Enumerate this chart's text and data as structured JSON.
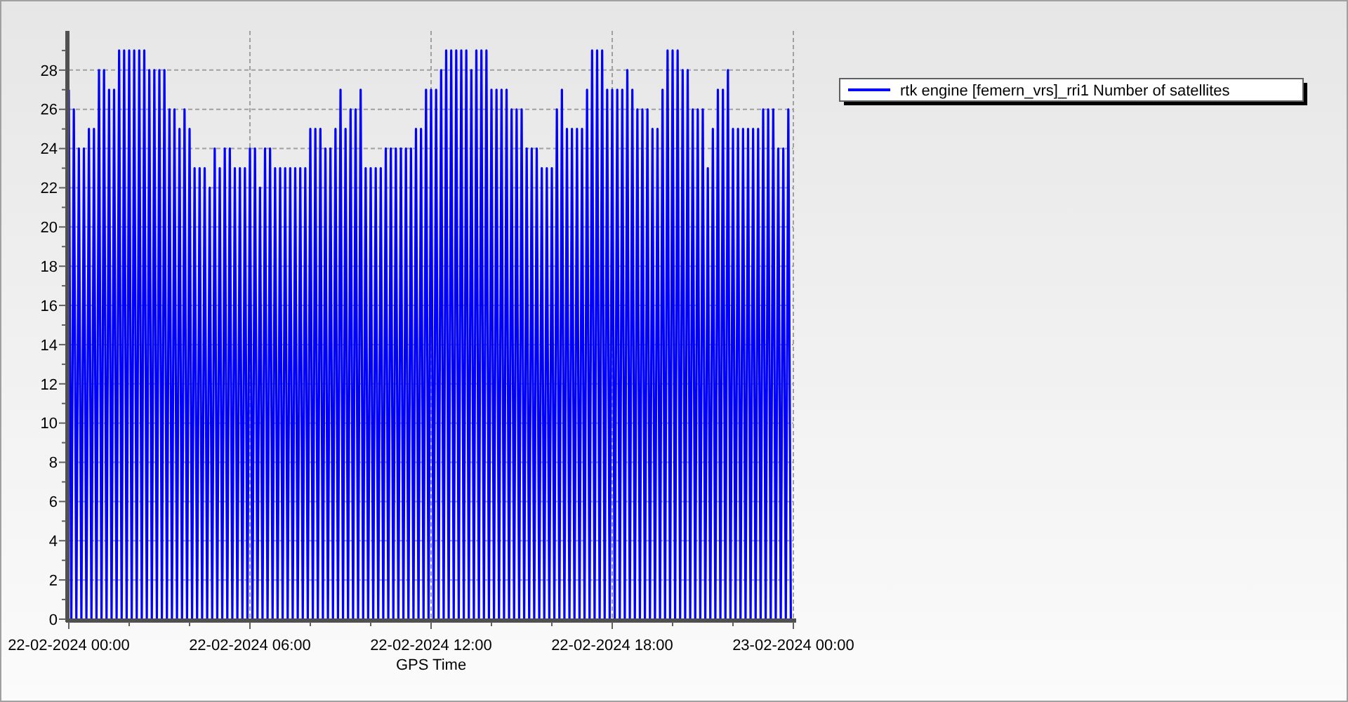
{
  "chart_data": {
    "type": "line",
    "xlabel": "GPS Time",
    "legend": "top right",
    "grid": true,
    "marker": "none",
    "line_style": "solid",
    "xlim": [
      "2024-02-22T00:00",
      "2024-02-23T00:00"
    ],
    "xticks": [
      {
        "value": "2024-02-22T00:00",
        "label": "22-02-2024 00:00"
      },
      {
        "value": "2024-02-22T02:00",
        "label": null
      },
      {
        "value": "2024-02-22T04:00",
        "label": null
      },
      {
        "value": "2024-02-22T06:00",
        "label": "22-02-2024 06:00"
      },
      {
        "value": "2024-02-22T08:00",
        "label": null
      },
      {
        "value": "2024-02-22T10:00",
        "label": null
      },
      {
        "value": "2024-02-22T12:00",
        "label": "22-02-2024 12:00"
      },
      {
        "value": "2024-02-22T14:00",
        "label": null
      },
      {
        "value": "2024-02-22T16:00",
        "label": null
      },
      {
        "value": "2024-02-22T18:00",
        "label": "22-02-2024 18:00"
      },
      {
        "value": "2024-02-22T20:00",
        "label": null
      },
      {
        "value": "2024-02-22T22:00",
        "label": null
      },
      {
        "value": "2024-02-23T00:00",
        "label": "23-02-2024 00:00"
      }
    ],
    "ylim": [
      0,
      30
    ],
    "yticks": [
      0,
      {
        "value": 1,
        "label": null
      },
      2,
      {
        "value": 3,
        "label": null
      },
      4,
      {
        "value": 5,
        "label": null
      },
      6,
      {
        "value": 7,
        "label": null
      },
      8,
      {
        "value": 9,
        "label": null
      },
      10,
      {
        "value": 11,
        "label": null
      },
      12,
      {
        "value": 13,
        "label": null
      },
      14,
      {
        "value": 15,
        "label": null
      },
      16,
      {
        "value": 17,
        "label": null
      },
      18,
      {
        "value": 19,
        "label": null
      },
      20,
      {
        "value": 21,
        "label": null
      },
      22,
      {
        "value": 23,
        "label": null
      },
      24,
      {
        "value": 25,
        "label": null
      },
      26,
      {
        "value": 27,
        "label": null
      },
      28,
      {
        "value": 29,
        "label": null
      }
    ],
    "x": [
      "2024-02-22T00:00",
      "2024-02-22T00:05",
      "2024-02-22T00:10",
      "2024-02-22T00:15",
      "2024-02-22T00:20",
      "2024-02-22T00:25",
      "2024-02-22T00:30",
      "2024-02-22T00:35",
      "2024-02-22T00:40",
      "2024-02-22T00:45",
      "2024-02-22T00:50",
      "2024-02-22T00:55",
      "2024-02-22T01:00",
      "2024-02-22T01:05",
      "2024-02-22T01:10",
      "2024-02-22T01:15",
      "2024-02-22T01:20",
      "2024-02-22T01:25",
      "2024-02-22T01:30",
      "2024-02-22T01:35",
      "2024-02-22T01:40",
      "2024-02-22T01:45",
      "2024-02-22T01:50",
      "2024-02-22T01:55",
      "2024-02-22T02:00",
      "2024-02-22T02:05",
      "2024-02-22T02:10",
      "2024-02-22T02:15",
      "2024-02-22T02:20",
      "2024-02-22T02:25",
      "2024-02-22T02:30",
      "2024-02-22T02:35",
      "2024-02-22T02:40",
      "2024-02-22T02:45",
      "2024-02-22T02:50",
      "2024-02-22T02:55",
      "2024-02-22T03:00",
      "2024-02-22T03:05",
      "2024-02-22T03:10",
      "2024-02-22T03:15",
      "2024-02-22T03:20",
      "2024-02-22T03:25",
      "2024-02-22T03:30",
      "2024-02-22T03:35",
      "2024-02-22T03:40",
      "2024-02-22T03:45",
      "2024-02-22T03:50",
      "2024-02-22T03:55",
      "2024-02-22T04:00",
      "2024-02-22T04:05",
      "2024-02-22T04:10",
      "2024-02-22T04:15",
      "2024-02-22T04:20",
      "2024-02-22T04:25",
      "2024-02-22T04:30",
      "2024-02-22T04:35",
      "2024-02-22T04:40",
      "2024-02-22T04:45",
      "2024-02-22T04:50",
      "2024-02-22T04:55",
      "2024-02-22T05:00",
      "2024-02-22T05:05",
      "2024-02-22T05:10",
      "2024-02-22T05:15",
      "2024-02-22T05:20",
      "2024-02-22T05:25",
      "2024-02-22T05:30",
      "2024-02-22T05:35",
      "2024-02-22T05:40",
      "2024-02-22T05:45",
      "2024-02-22T05:50",
      "2024-02-22T05:55",
      "2024-02-22T06:00",
      "2024-02-22T06:05",
      "2024-02-22T06:10",
      "2024-02-22T06:15",
      "2024-02-22T06:20",
      "2024-02-22T06:25",
      "2024-02-22T06:30",
      "2024-02-22T06:35",
      "2024-02-22T06:40",
      "2024-02-22T06:45",
      "2024-02-22T06:50",
      "2024-02-22T06:55",
      "2024-02-22T07:00",
      "2024-02-22T07:05",
      "2024-02-22T07:10",
      "2024-02-22T07:15",
      "2024-02-22T07:20",
      "2024-02-22T07:25",
      "2024-02-22T07:30",
      "2024-02-22T07:35",
      "2024-02-22T07:40",
      "2024-02-22T07:45",
      "2024-02-22T07:50",
      "2024-02-22T07:55",
      "2024-02-22T08:00",
      "2024-02-22T08:05",
      "2024-02-22T08:10",
      "2024-02-22T08:15",
      "2024-02-22T08:20",
      "2024-02-22T08:25",
      "2024-02-22T08:30",
      "2024-02-22T08:35",
      "2024-02-22T08:40",
      "2024-02-22T08:45",
      "2024-02-22T08:50",
      "2024-02-22T08:55",
      "2024-02-22T09:00",
      "2024-02-22T09:05",
      "2024-02-22T09:10",
      "2024-02-22T09:15",
      "2024-02-22T09:20",
      "2024-02-22T09:25",
      "2024-02-22T09:30",
      "2024-02-22T09:35",
      "2024-02-22T09:40",
      "2024-02-22T09:45",
      "2024-02-22T09:50",
      "2024-02-22T09:55",
      "2024-02-22T10:00",
      "2024-02-22T10:05",
      "2024-02-22T10:10",
      "2024-02-22T10:15",
      "2024-02-22T10:20",
      "2024-02-22T10:25",
      "2024-02-22T10:30",
      "2024-02-22T10:35",
      "2024-02-22T10:40",
      "2024-02-22T10:45",
      "2024-02-22T10:50",
      "2024-02-22T10:55",
      "2024-02-22T11:00",
      "2024-02-22T11:05",
      "2024-02-22T11:10",
      "2024-02-22T11:15",
      "2024-02-22T11:20",
      "2024-02-22T11:25",
      "2024-02-22T11:30",
      "2024-02-22T11:35",
      "2024-02-22T11:40",
      "2024-02-22T11:45",
      "2024-02-22T11:50",
      "2024-02-22T11:55",
      "2024-02-22T12:00",
      "2024-02-22T12:05",
      "2024-02-22T12:10",
      "2024-02-22T12:15",
      "2024-02-22T12:20",
      "2024-02-22T12:25",
      "2024-02-22T12:30",
      "2024-02-22T12:35",
      "2024-02-22T12:40",
      "2024-02-22T12:45",
      "2024-02-22T12:50",
      "2024-02-22T12:55",
      "2024-02-22T13:00",
      "2024-02-22T13:05",
      "2024-02-22T13:10",
      "2024-02-22T13:15",
      "2024-02-22T13:20",
      "2024-02-22T13:25",
      "2024-02-22T13:30",
      "2024-02-22T13:35",
      "2024-02-22T13:40",
      "2024-02-22T13:45",
      "2024-02-22T13:50",
      "2024-02-22T13:55",
      "2024-02-22T14:00",
      "2024-02-22T14:05",
      "2024-02-22T14:10",
      "2024-02-22T14:15",
      "2024-02-22T14:20",
      "2024-02-22T14:25",
      "2024-02-22T14:30",
      "2024-02-22T14:35",
      "2024-02-22T14:40",
      "2024-02-22T14:45",
      "2024-02-22T14:50",
      "2024-02-22T14:55",
      "2024-02-22T15:00",
      "2024-02-22T15:05",
      "2024-02-22T15:10",
      "2024-02-22T15:15",
      "2024-02-22T15:20",
      "2024-02-22T15:25",
      "2024-02-22T15:30",
      "2024-02-22T15:35",
      "2024-02-22T15:40",
      "2024-02-22T15:45",
      "2024-02-22T15:50",
      "2024-02-22T15:55",
      "2024-02-22T16:00",
      "2024-02-22T16:05",
      "2024-02-22T16:10",
      "2024-02-22T16:15",
      "2024-02-22T16:20",
      "2024-02-22T16:25",
      "2024-02-22T16:30",
      "2024-02-22T16:35",
      "2024-02-22T16:40",
      "2024-02-22T16:45",
      "2024-02-22T16:50",
      "2024-02-22T16:55",
      "2024-02-22T17:00",
      "2024-02-22T17:05",
      "2024-02-22T17:10",
      "2024-02-22T17:15",
      "2024-02-22T17:20",
      "2024-02-22T17:25",
      "2024-02-22T17:30",
      "2024-02-22T17:35",
      "2024-02-22T17:40",
      "2024-02-22T17:45",
      "2024-02-22T17:50",
      "2024-02-22T17:55",
      "2024-02-22T18:00",
      "2024-02-22T18:05",
      "2024-02-22T18:10",
      "2024-02-22T18:15",
      "2024-02-22T18:20",
      "2024-02-22T18:25",
      "2024-02-22T18:30",
      "2024-02-22T18:35",
      "2024-02-22T18:40",
      "2024-02-22T18:45",
      "2024-02-22T18:50",
      "2024-02-22T18:55",
      "2024-02-22T19:00",
      "2024-02-22T19:05",
      "2024-02-22T19:10",
      "2024-02-22T19:15",
      "2024-02-22T19:20",
      "2024-02-22T19:25",
      "2024-02-22T19:30",
      "2024-02-22T19:35",
      "2024-02-22T19:40",
      "2024-02-22T19:45",
      "2024-02-22T19:50",
      "2024-02-22T19:55",
      "2024-02-22T20:00",
      "2024-02-22T20:05",
      "2024-02-22T20:10",
      "2024-02-22T20:15",
      "2024-02-22T20:20",
      "2024-02-22T20:25",
      "2024-02-22T20:30",
      "2024-02-22T20:35",
      "2024-02-22T20:40",
      "2024-02-22T20:45",
      "2024-02-22T20:50",
      "2024-02-22T20:55",
      "2024-02-22T21:00",
      "2024-02-22T21:05",
      "2024-02-22T21:10",
      "2024-02-22T21:15",
      "2024-02-22T21:20",
      "2024-02-22T21:25",
      "2024-02-22T21:30",
      "2024-02-22T21:35",
      "2024-02-22T21:40",
      "2024-02-22T21:45",
      "2024-02-22T21:50",
      "2024-02-22T21:55",
      "2024-02-22T22:00",
      "2024-02-22T22:05",
      "2024-02-22T22:10",
      "2024-02-22T22:15",
      "2024-02-22T22:20",
      "2024-02-22T22:25",
      "2024-02-22T22:30",
      "2024-02-22T22:35",
      "2024-02-22T22:40",
      "2024-02-22T22:45",
      "2024-02-22T22:50",
      "2024-02-22T22:55",
      "2024-02-22T23:00",
      "2024-02-22T23:05",
      "2024-02-22T23:10",
      "2024-02-22T23:15",
      "2024-02-22T23:20",
      "2024-02-22T23:25",
      "2024-02-22T23:30",
      "2024-02-22T23:35",
      "2024-02-22T23:40",
      "2024-02-22T23:45",
      "2024-02-22T23:50",
      "2024-02-22T23:55"
    ],
    "series": [
      {
        "name": "rtk engine [femern_vrs]_rri1 Number of satellites",
        "color": "#0000ff",
        "values": [
          27,
          0,
          26,
          0,
          24,
          0,
          24,
          0,
          25,
          0,
          25,
          0,
          28,
          0,
          28,
          0,
          27,
          0,
          27,
          0,
          29,
          0,
          29,
          0,
          29,
          0,
          29,
          0,
          29,
          0,
          29,
          0,
          28,
          0,
          28,
          0,
          28,
          0,
          28,
          0,
          26,
          0,
          26,
          0,
          25,
          0,
          26,
          0,
          25,
          0,
          23,
          0,
          23,
          0,
          23,
          0,
          22,
          0,
          24,
          0,
          23,
          0,
          24,
          0,
          24,
          0,
          23,
          0,
          23,
          0,
          23,
          0,
          24,
          0,
          24,
          0,
          22,
          0,
          24,
          0,
          24,
          0,
          23,
          0,
          23,
          0,
          23,
          0,
          23,
          0,
          23,
          0,
          23,
          0,
          23,
          0,
          25,
          0,
          25,
          0,
          25,
          0,
          24,
          0,
          24,
          0,
          25,
          0,
          27,
          0,
          25,
          0,
          26,
          0,
          26,
          0,
          27,
          0,
          23,
          0,
          23,
          0,
          23,
          0,
          23,
          0,
          24,
          0,
          24,
          0,
          24,
          0,
          24,
          0,
          24,
          0,
          24,
          0,
          25,
          0,
          25,
          0,
          27,
          0,
          27,
          0,
          27,
          0,
          28,
          0,
          29,
          0,
          29,
          0,
          29,
          0,
          29,
          0,
          29,
          0,
          28,
          0,
          29,
          0,
          29,
          0,
          29,
          0,
          27,
          0,
          27,
          0,
          27,
          0,
          27,
          0,
          26,
          0,
          26,
          0,
          26,
          0,
          24,
          0,
          24,
          0,
          24,
          0,
          23,
          0,
          23,
          0,
          23,
          0,
          26,
          0,
          27,
          0,
          25,
          0,
          25,
          0,
          25,
          0,
          25,
          0,
          27,
          0,
          29,
          0,
          29,
          0,
          29,
          0,
          27,
          0,
          27,
          0,
          27,
          0,
          27,
          0,
          28,
          0,
          27,
          0,
          26,
          0,
          26,
          0,
          26,
          0,
          25,
          0,
          25,
          0,
          27,
          0,
          29,
          0,
          29,
          0,
          29,
          0,
          28,
          0,
          28,
          0,
          26,
          0,
          26,
          0,
          26,
          0,
          23,
          0,
          25,
          0,
          27,
          0,
          27,
          0,
          28,
          0,
          25,
          0,
          25,
          0,
          25,
          0,
          25,
          0,
          25,
          0,
          25,
          0,
          26,
          0,
          26,
          0,
          26,
          0,
          24,
          0,
          24,
          0,
          26,
          0
        ]
      }
    ]
  }
}
